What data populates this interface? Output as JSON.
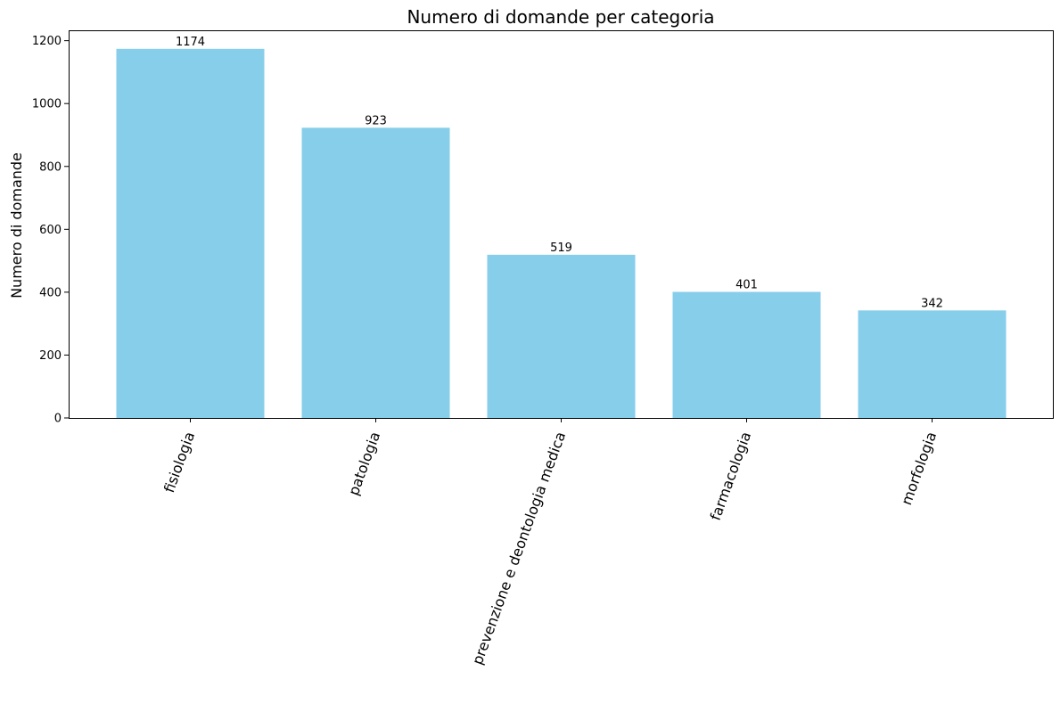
{
  "chart_data": {
    "type": "bar",
    "title": "Numero di domande per categoria",
    "xlabel": "",
    "ylabel": "Numero di domande",
    "categories": [
      "fisiologia",
      "patologia",
      "prevenzione e deontologia medica",
      "farmacologia",
      "morfologia"
    ],
    "values": [
      1174,
      923,
      519,
      401,
      342
    ],
    "ylim": [
      0,
      1233
    ],
    "yticks": [
      0,
      200,
      400,
      600,
      800,
      1000,
      1200
    ],
    "bar_color": "#87CEEB",
    "grid": false,
    "xtick_rotation_deg": 70
  }
}
